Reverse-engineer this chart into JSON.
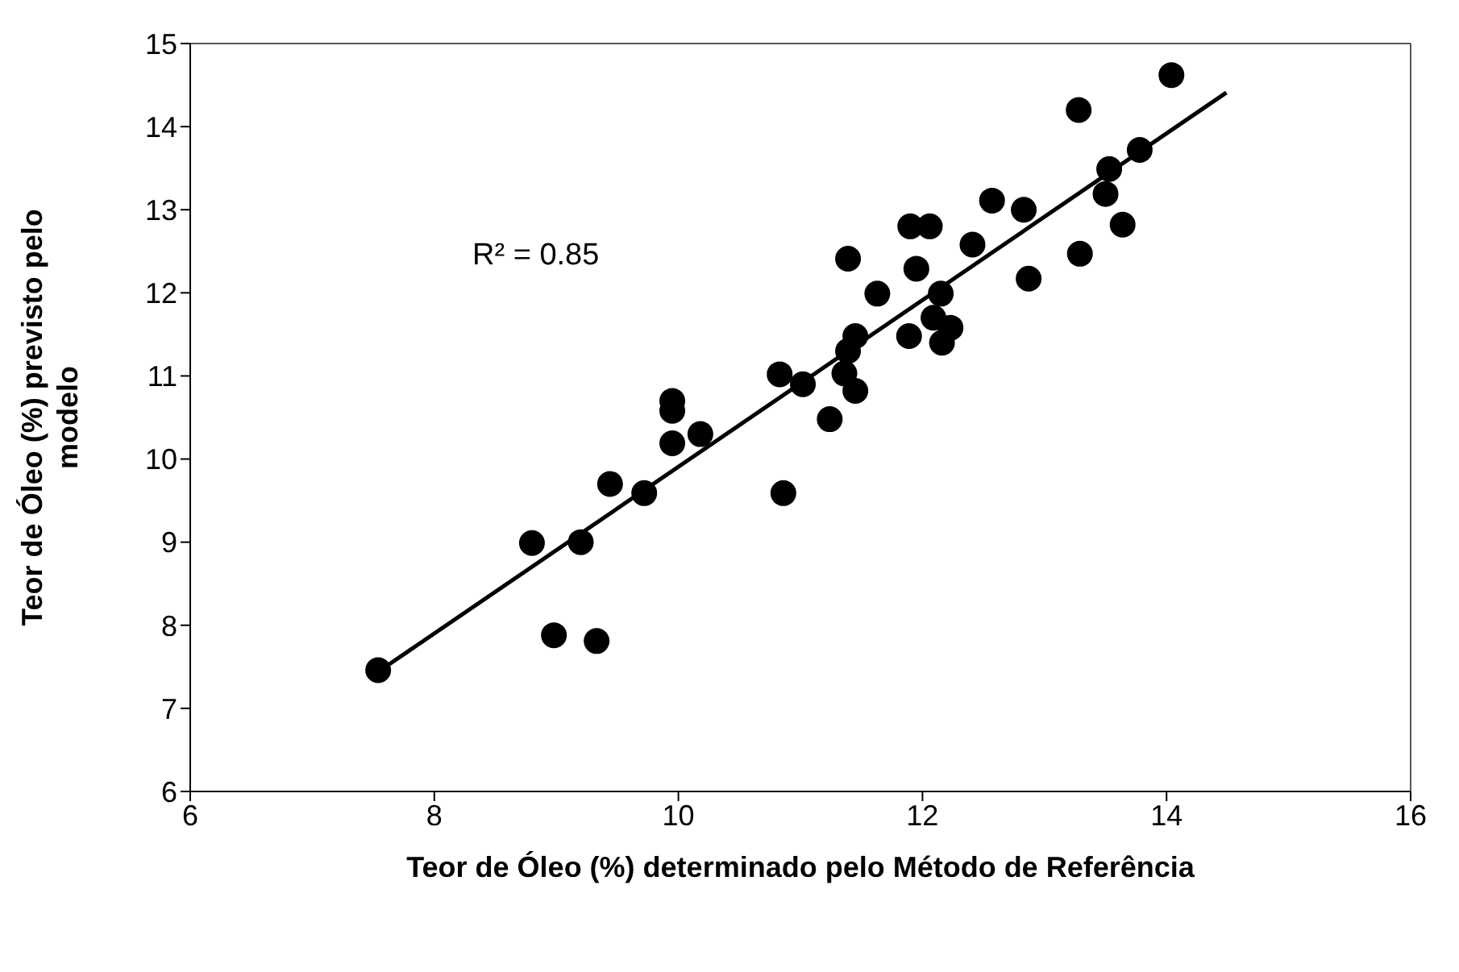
{
  "chart_data": {
    "type": "scatter",
    "xlabel": "Teor de Óleo (%) determinado pelo Método de Referência",
    "ylabel": "Teor de Óleo (%) previsto pelo modelo",
    "annotations": [
      "R² = 0.85"
    ],
    "xlim": [
      6,
      16
    ],
    "xticks": [
      6,
      8,
      10,
      12,
      14,
      16
    ],
    "ylim": [
      6,
      15
    ],
    "yticks": [
      6,
      7,
      8,
      9,
      10,
      11,
      12,
      13,
      14,
      15
    ],
    "series": [
      {
        "marker": "circle",
        "color": "#000000",
        "x": [
          7.54,
          8.98,
          9.33,
          8.8,
          9.2,
          9.44,
          9.72,
          10.86,
          9.95,
          10.18,
          9.95,
          9.95,
          11.24,
          10.83,
          11.02,
          11.36,
          11.45,
          11.39,
          11.45,
          11.39,
          11.63,
          11.9,
          12.06,
          11.95,
          11.89,
          12.09,
          12.15,
          12.23,
          12.16,
          12.41,
          12.57,
          12.83,
          12.87,
          13.29,
          13.53,
          13.5,
          13.64,
          13.78,
          14.04,
          13.28
        ],
        "values": [
          7.46,
          7.88,
          7.81,
          8.99,
          9.0,
          9.7,
          9.59,
          9.59,
          10.19,
          10.3,
          10.7,
          10.58,
          10.48,
          11.02,
          10.9,
          11.03,
          10.82,
          11.3,
          11.48,
          12.41,
          11.99,
          12.8,
          12.8,
          12.29,
          11.48,
          11.7,
          11.99,
          11.58,
          11.4,
          12.58,
          13.11,
          13.0,
          12.17,
          12.47,
          13.49,
          13.19,
          12.82,
          13.72,
          14.62,
          14.2
        ]
      },
      {
        "type": "line",
        "color": "#000000",
        "x": [
          7.62,
          14.49
        ],
        "values": [
          7.52,
          14.41
        ]
      }
    ]
  }
}
